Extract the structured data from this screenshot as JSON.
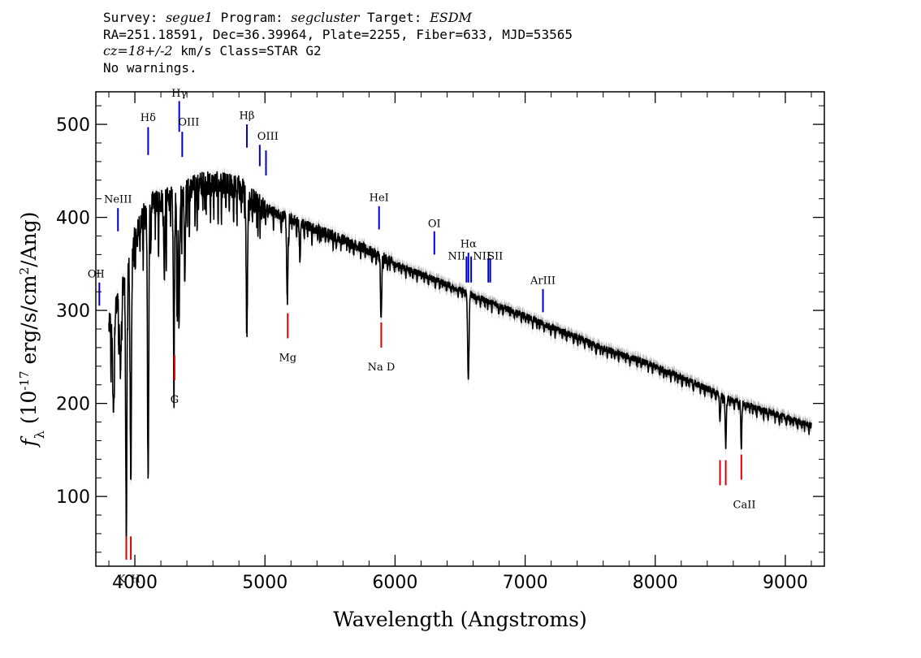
{
  "header": {
    "line1": {
      "survey_label": "Survey:",
      "survey": "segue1",
      "program_label": "Program:",
      "program": "segcluster",
      "target_label": "Target:",
      "target": "ESDM"
    },
    "line2": "RA=251.18591, Dec=36.39964, Plate=2255, Fiber=633, MJD=53565",
    "line3": {
      "cz": "cz=18+/-2",
      "rest": "km/s Class=STAR G2"
    },
    "line4": "No warnings."
  },
  "colors": {
    "spectrum": "#000000",
    "error_band": "#b0b0b0",
    "emission": "#0000cc",
    "absorption": "#dd0000"
  },
  "chart_data": {
    "type": "line",
    "xlabel": "Wavelength (Angstroms)",
    "ylabel": {
      "prefix": "f",
      "sub": "λ",
      "open": " (10",
      "exp": "-17",
      "mid": " erg/s/cm",
      "exp2": "2",
      "close": "/Ang)"
    },
    "xlim": [
      3700,
      9300
    ],
    "ylim": [
      25,
      535
    ],
    "x_ticks": [
      4000,
      5000,
      6000,
      7000,
      8000,
      9000
    ],
    "x_tick_labels": [
      "4000",
      "5000",
      "6000",
      "7000",
      "8000",
      "9000"
    ],
    "y_ticks": [
      100,
      200,
      300,
      400,
      500
    ],
    "y_tick_labels": [
      "100",
      "200",
      "300",
      "400",
      "500"
    ],
    "grid": false,
    "spectrum_range": [
      3800,
      9200
    ],
    "continuum": {
      "x": [
        3800,
        3850,
        3900,
        3950,
        4000,
        4100,
        4200,
        4300,
        4400,
        4500,
        4600,
        4700,
        4800,
        4900,
        5000,
        5200,
        5400,
        5600,
        5800,
        6000,
        6200,
        6400,
        6600,
        6800,
        7000,
        7200,
        7400,
        7600,
        7800,
        8000,
        8200,
        8400,
        8600,
        8800,
        9000,
        9200
      ],
      "y": [
        282,
        300,
        325,
        345,
        380,
        412,
        418,
        420,
        428,
        436,
        436,
        434,
        432,
        420,
        410,
        398,
        387,
        376,
        364,
        350,
        339,
        328,
        316,
        305,
        294,
        282,
        271,
        259,
        250,
        240,
        228,
        216,
        203,
        194,
        185,
        176
      ]
    },
    "absorption_features": [
      {
        "x": 3835,
        "depth": 100,
        "width": 6
      },
      {
        "x": 3889,
        "depth": 80,
        "width": 6
      },
      {
        "x": 3934,
        "depth": 260,
        "width": 5
      },
      {
        "x": 3969,
        "depth": 240,
        "width": 5
      },
      {
        "x": 4102,
        "depth": 290,
        "width": 5
      },
      {
        "x": 4226,
        "depth": 80,
        "width": 4
      },
      {
        "x": 4300,
        "depth": 150,
        "width": 5
      },
      {
        "x": 4325,
        "depth": 130,
        "width": 4
      },
      {
        "x": 4340,
        "depth": 140,
        "width": 4
      },
      {
        "x": 4384,
        "depth": 90,
        "width": 4
      },
      {
        "x": 4861,
        "depth": 150,
        "width": 5
      },
      {
        "x": 5172,
        "depth": 90,
        "width": 5
      },
      {
        "x": 5269,
        "depth": 40,
        "width": 4
      },
      {
        "x": 5890,
        "depth": 55,
        "width": 3
      },
      {
        "x": 5896,
        "depth": 50,
        "width": 3
      },
      {
        "x": 6563,
        "depth": 95,
        "width": 5
      },
      {
        "x": 8498,
        "depth": 30,
        "width": 4
      },
      {
        "x": 8542,
        "depth": 55,
        "width": 4
      },
      {
        "x": 8662,
        "depth": 45,
        "width": 4
      }
    ],
    "line_markers": [
      {
        "label": "Hδ",
        "wavelength": 4102,
        "type": "emission",
        "y0": 467,
        "y1": 497,
        "label_y": 508
      },
      {
        "label": "Hγ",
        "wavelength": 4341,
        "type": "emission",
        "y0": 492,
        "y1": 525,
        "label_y": 534
      },
      {
        "label": "OIII",
        "wavelength": 4364,
        "type": "emission",
        "y0": 465,
        "y1": 492,
        "label_y": 503,
        "label_dx": 8
      },
      {
        "label": "Hβ",
        "wavelength": 4861,
        "type": "emission",
        "y0": 475,
        "y1": 500,
        "label_y": 510
      },
      {
        "label": "OIII",
        "wavelength": 4960,
        "type": "emission",
        "y0": 455,
        "y1": 478,
        "label_y": 488,
        "label_dx": 10
      },
      {
        "label": "",
        "wavelength": 5008,
        "type": "emission",
        "y0": 445,
        "y1": 472,
        "label_y": 0
      },
      {
        "label": "NeIII",
        "wavelength": 3870,
        "type": "emission",
        "y0": 385,
        "y1": 410,
        "label_y": 420
      },
      {
        "label": "OII",
        "wavelength": 3727,
        "type": "emission",
        "y0": 305,
        "y1": 330,
        "label_y": 340,
        "label_dx": -4
      },
      {
        "label": "HeI",
        "wavelength": 5877,
        "type": "emission",
        "y0": 387,
        "y1": 412,
        "label_y": 422
      },
      {
        "label": "OI",
        "wavelength": 6302,
        "type": "emission",
        "y0": 360,
        "y1": 385,
        "label_y": 394
      },
      {
        "label": "NII",
        "wavelength": 6549,
        "type": "emission",
        "y0": 330,
        "y1": 358,
        "label_y": 359,
        "label_dx": -12
      },
      {
        "label": "Hα",
        "wavelength": 6564,
        "type": "emission",
        "y0": 330,
        "y1": 362,
        "label_y": 372
      },
      {
        "label": "",
        "wavelength": 6585,
        "type": "emission",
        "y0": 330,
        "y1": 358,
        "label_y": 0
      },
      {
        "label": "NII",
        "wavelength": 6717,
        "type": "emission",
        "y0": 330,
        "y1": 356,
        "label_y": 359,
        "label_dx": -8
      },
      {
        "label": "SII",
        "wavelength": 6732,
        "type": "emission",
        "y0": 330,
        "y1": 356,
        "label_y": 359,
        "label_dx": 6
      },
      {
        "label": "ArIII",
        "wavelength": 7137,
        "type": "emission",
        "y0": 298,
        "y1": 323,
        "label_y": 333
      },
      {
        "label": "K",
        "wavelength": 3934,
        "type": "absorption",
        "y0": 32,
        "y1": 57,
        "label_y": 12,
        "label_dx": -6
      },
      {
        "label": "H",
        "wavelength": 3969,
        "type": "absorption",
        "y0": 32,
        "y1": 57,
        "label_y": 12,
        "label_dx": 6
      },
      {
        "label": "G",
        "wavelength": 4305,
        "type": "absorption",
        "y0": 225,
        "y1": 252,
        "label_y": 205
      },
      {
        "label": "Mg",
        "wavelength": 5175,
        "type": "absorption",
        "y0": 270,
        "y1": 297,
        "label_y": 250
      },
      {
        "label": "Na D",
        "wavelength": 5894,
        "type": "absorption",
        "y0": 260,
        "y1": 287,
        "label_y": 240
      },
      {
        "label": "CaII",
        "wavelength": 8498,
        "type": "absorption",
        "y0": 112,
        "y1": 139,
        "label_y": 92,
        "label_dx": 30
      },
      {
        "label": "",
        "wavelength": 8542,
        "type": "absorption",
        "y0": 112,
        "y1": 139,
        "label_y": 0
      },
      {
        "label": "",
        "wavelength": 8662,
        "type": "absorption",
        "y0": 118,
        "y1": 145,
        "label_y": 0
      }
    ]
  }
}
